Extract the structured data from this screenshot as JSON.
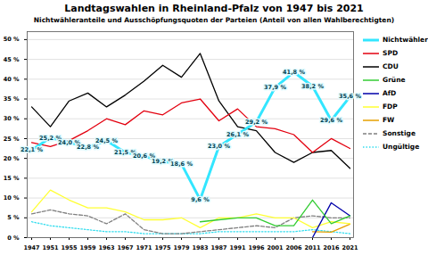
{
  "chart_data": {
    "type": "line",
    "title": "Landtagswahlen in Rheinland-Pfalz von 1947 bis 2021",
    "subtitle": "Nichtwähleranteile und Ausschöpfungsquoten der Parteien (Anteil von allen Wahlberechtigten)",
    "categories": [
      "1947",
      "1951",
      "1955",
      "1959",
      "1963",
      "1967",
      "1971",
      "1975",
      "1979",
      "1983",
      "1987",
      "1991",
      "1996",
      "2001",
      "2006",
      "2011",
      "2016",
      "2021"
    ],
    "ylim": [
      0,
      52
    ],
    "yticks": [
      {
        "value": 0,
        "label": "0 %"
      },
      {
        "value": 5,
        "label": "5 %"
      },
      {
        "value": 10,
        "label": "10 %"
      },
      {
        "value": 15,
        "label": "15 %"
      },
      {
        "value": 20,
        "label": "20 %"
      },
      {
        "value": 25,
        "label": "25 %"
      },
      {
        "value": 30,
        "label": "30 %"
      },
      {
        "value": 35,
        "label": "35 %"
      },
      {
        "value": 40,
        "label": "40 %"
      },
      {
        "value": 45,
        "label": "45 %"
      },
      {
        "value": 50,
        "label": "50 %"
      }
    ],
    "grid": true,
    "legend": "right",
    "series": [
      {
        "name": "Nichtwähler",
        "color": "#33e6ff",
        "line_style": "solid",
        "data_labels": true,
        "values": [
          22.1,
          25.2,
          24.0,
          22.8,
          24.5,
          21.5,
          20.6,
          19.2,
          18.6,
          9.6,
          23.0,
          26.1,
          29.2,
          37.9,
          41.8,
          38.2,
          29.6,
          35.6
        ],
        "value_labels": [
          "22,1 %",
          "25,2 %",
          "24,0 %",
          "22,8 %",
          "24,5 %",
          "21,5 %",
          "20,6 %",
          "19,2 %",
          "18,6 %",
          "9,6 %",
          "23,0 %",
          "26,1 %",
          "29,2 %",
          "37,9 %",
          "41,8 %",
          "38,2 %",
          "29,6 %",
          "35,6 %"
        ]
      },
      {
        "name": "SPD",
        "color": "#e3000f",
        "line_style": "solid",
        "values": [
          24,
          23,
          24.5,
          27,
          30,
          28.5,
          32,
          31,
          34,
          35,
          29.5,
          32.5,
          28,
          27.5,
          26,
          21.5,
          25,
          22.5
        ]
      },
      {
        "name": "CDU",
        "color": "#000000",
        "line_style": "solid",
        "values": [
          33,
          28,
          34.5,
          36.5,
          33,
          36,
          39.5,
          43.5,
          40.5,
          46.5,
          34.5,
          28,
          27,
          21.5,
          19,
          21.5,
          22,
          17.5
        ]
      },
      {
        "name": "Grüne",
        "color": "#33cc33",
        "line_style": "solid",
        "values": [
          null,
          null,
          null,
          null,
          null,
          null,
          null,
          null,
          null,
          4,
          4.5,
          5,
          5,
          3,
          3,
          9.5,
          3.5,
          5.5
        ]
      },
      {
        "name": "AfD",
        "color": "#0000aa",
        "line_style": "solid",
        "values": [
          null,
          null,
          null,
          null,
          null,
          null,
          null,
          null,
          null,
          null,
          null,
          null,
          null,
          null,
          null,
          0,
          8.8,
          5.5
        ]
      },
      {
        "name": "FDP",
        "color": "#ffff33",
        "line_style": "solid",
        "values": [
          6.5,
          12,
          9.5,
          7.5,
          7.5,
          6.5,
          4.5,
          4.5,
          5,
          2.5,
          5,
          5,
          6,
          5,
          5,
          2.5,
          4,
          3.5
        ]
      },
      {
        "name": "FW",
        "color": "#e6a000",
        "line_style": "solid",
        "values": [
          null,
          null,
          null,
          null,
          null,
          null,
          null,
          null,
          null,
          null,
          null,
          null,
          null,
          null,
          null,
          1.5,
          1.4,
          3.4
        ]
      },
      {
        "name": "Sonstige",
        "color": "#808080",
        "line_style": "dashed",
        "values": [
          6,
          7,
          6,
          5.5,
          3.5,
          6,
          2,
          1,
          1,
          1.5,
          2,
          2.5,
          3,
          2.5,
          5,
          5.5,
          5,
          5
        ]
      },
      {
        "name": "Ungültige",
        "color": "#33ddee",
        "line_style": "dotted",
        "values": [
          4,
          3,
          2.5,
          2,
          1.5,
          1.5,
          1,
          1,
          1,
          1,
          1.5,
          1.5,
          1.5,
          1.5,
          1.5,
          2,
          1.5,
          1
        ]
      }
    ]
  }
}
